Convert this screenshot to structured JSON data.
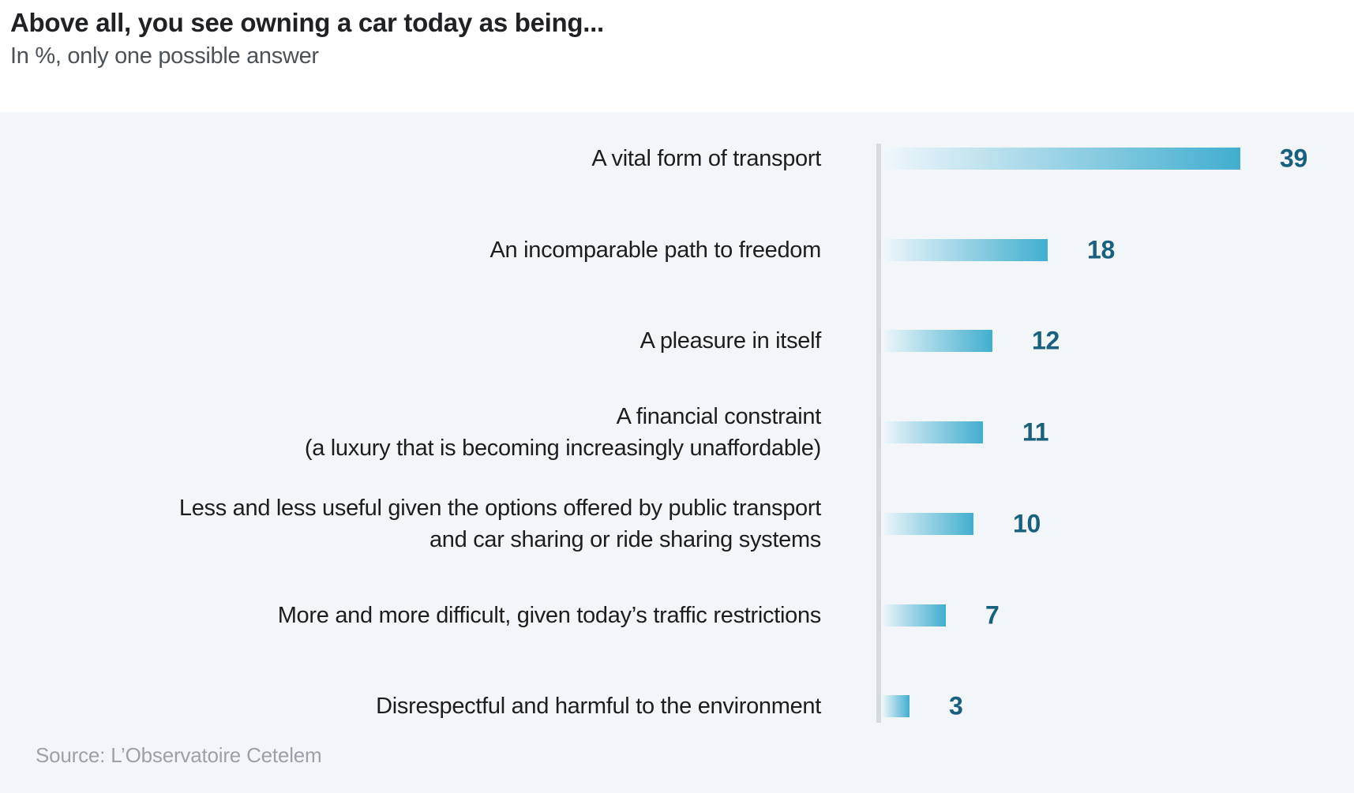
{
  "header": {
    "title": "Above all, you see owning a car today as being...",
    "subtitle": "In %, only one possible answer"
  },
  "chart_data": {
    "type": "bar",
    "orientation": "horizontal",
    "title": "Above all, you see owning a car today as being...",
    "subtitle": "In %, only one possible answer",
    "unit": "%",
    "xlim": [
      0,
      39
    ],
    "grid": false,
    "legend": false,
    "categories": [
      "A vital form of transport",
      "An incomparable path to freedom",
      "A pleasure in itself",
      "A financial constraint (a luxury that is becoming increasingly unaffordable)",
      "Less and less useful given the options offered by public transport and car sharing or ride sharing systems",
      "More and more difficult, given today’s traffic restrictions",
      "Disrespectful and harmful to the environment"
    ],
    "label_lines": [
      [
        "A vital form of transport"
      ],
      [
        "An incomparable path to freedom"
      ],
      [
        "A pleasure in itself"
      ],
      [
        "A financial constraint",
        "(a luxury that is becoming increasingly unaffordable)"
      ],
      [
        "Less and less useful given the options offered by public transport",
        "and car sharing or ride sharing systems"
      ],
      [
        "More and more difficult, given today’s traffic restrictions"
      ],
      [
        "Disrespectful and harmful to the environment"
      ]
    ],
    "values": [
      39,
      18,
      12,
      11,
      10,
      7,
      3
    ]
  },
  "source": "Source: L’Observatoire Cetelem",
  "colors": {
    "panel_bg": "#f2f6f9",
    "axis_line": "#d7dadc",
    "bar_gradient_start": "#f1f7fb",
    "bar_gradient_end": "#41aecf",
    "value_label": "#19607f",
    "title_text": "#202124",
    "subtitle_text": "#4b5157",
    "category_text": "#1d1d1f",
    "source_text": "#9aa1a7"
  }
}
